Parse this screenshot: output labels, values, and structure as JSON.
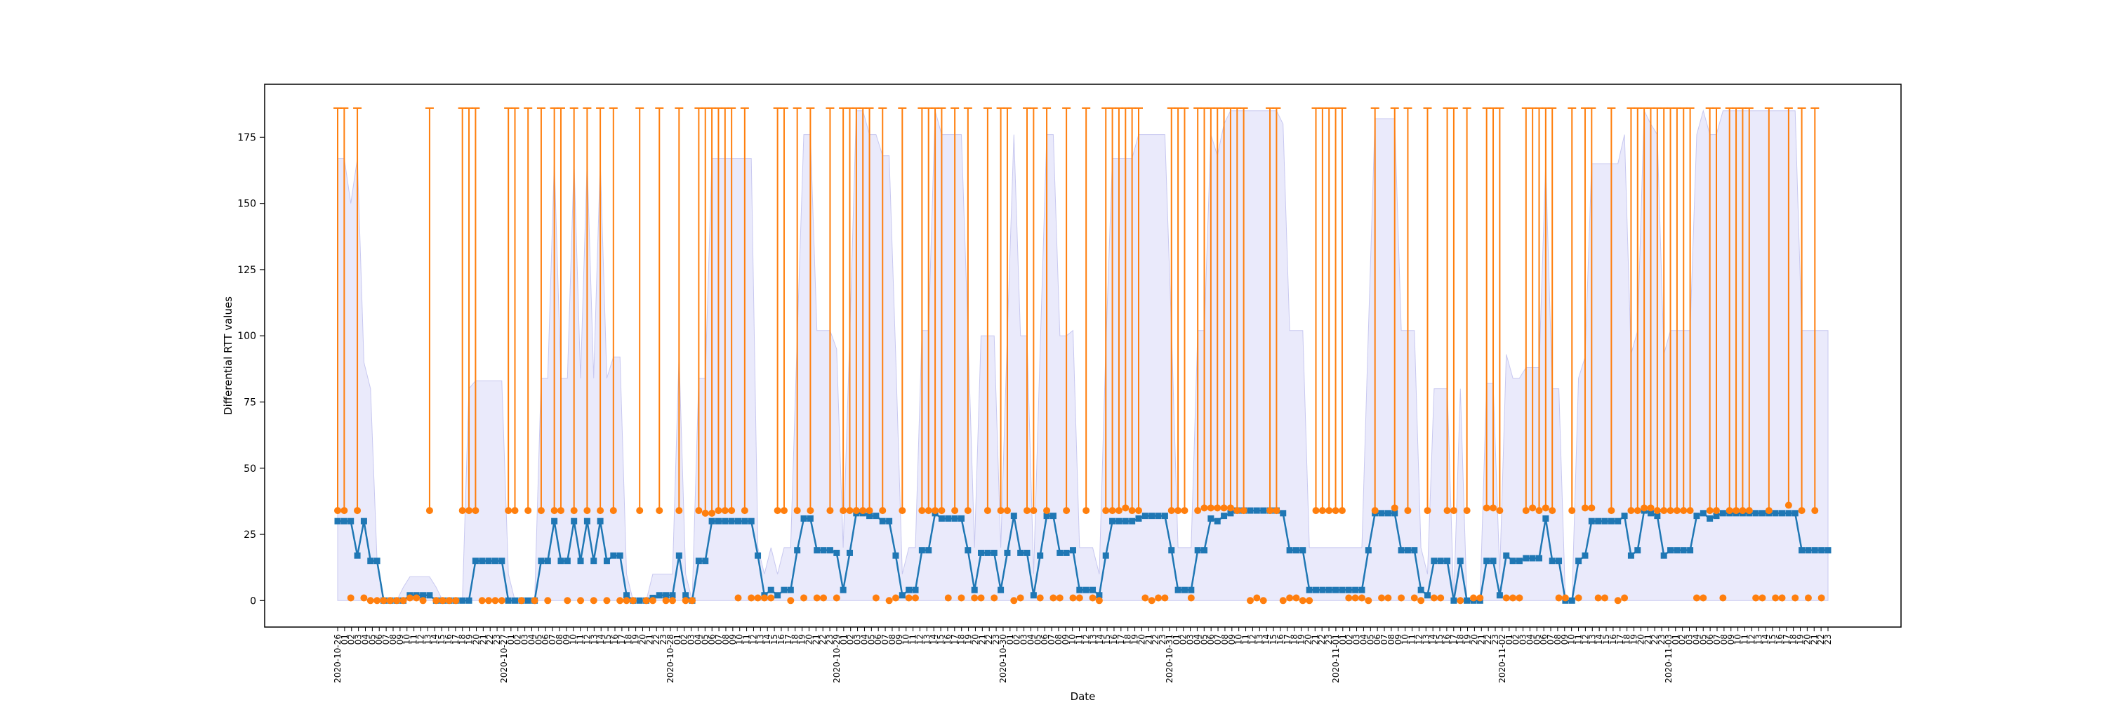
{
  "chart_data": {
    "type": "line",
    "title": "",
    "xlabel": "Date",
    "ylabel": "Differential RTT values",
    "ylim": [
      -10,
      195
    ],
    "yticks": [
      0,
      25,
      50,
      75,
      100,
      125,
      150,
      175
    ],
    "grid": false,
    "legend": "none",
    "x_date_labels": [
      "2020-10-26",
      "2020-10-27",
      "2020-10-28",
      "2020-10-29",
      "2020-10-30",
      "2020-10-31",
      "2020-11-01",
      "2020-11-02",
      "2020-11-03"
    ],
    "x_hour_labels": [
      "01",
      "02",
      "03",
      "04",
      "05",
      "06",
      "07",
      "08",
      "09",
      "10",
      "11",
      "12",
      "13",
      "14",
      "15",
      "16",
      "17",
      "18",
      "19",
      "20",
      "21",
      "22",
      "23"
    ],
    "series": [
      {
        "type": "line",
        "color": "#1f77b4",
        "marker": "square",
        "values": [
          30,
          30,
          30,
          17,
          30,
          15,
          15,
          0,
          0,
          0,
          0,
          2,
          2,
          2,
          2,
          0,
          0,
          0,
          0,
          0,
          0,
          15,
          15,
          15,
          15,
          15,
          0,
          0,
          0,
          0,
          0,
          15,
          15,
          30,
          15,
          15,
          30,
          15,
          30,
          15,
          30,
          15,
          17,
          17,
          2,
          0,
          0,
          0,
          1,
          2,
          2,
          2,
          17,
          2,
          0,
          15,
          15,
          30,
          30,
          30,
          30,
          30,
          30,
          30,
          17,
          2,
          4,
          2,
          4,
          4,
          19,
          31,
          31,
          19,
          19,
          19,
          18,
          4,
          18,
          33,
          33,
          32,
          32,
          30,
          30,
          17,
          2,
          4,
          4,
          19,
          19,
          33,
          31,
          31,
          31,
          31,
          19,
          4,
          18,
          18,
          18,
          4,
          18,
          32,
          18,
          18,
          2,
          17,
          32,
          32,
          18,
          18,
          19,
          4,
          4,
          4,
          2,
          17,
          30,
          30,
          30,
          30,
          31,
          32,
          32,
          32,
          32,
          19,
          4,
          4,
          4,
          19,
          19,
          31,
          30,
          32,
          33,
          34,
          34,
          34,
          34,
          34,
          34,
          34,
          33,
          19,
          19,
          19,
          4,
          4,
          4,
          4,
          4,
          4,
          4,
          4,
          4,
          19,
          33,
          33,
          33,
          33,
          19,
          19,
          19,
          4,
          2,
          15,
          15,
          15,
          0,
          15,
          0,
          0,
          0,
          15,
          15,
          2,
          17,
          15,
          15,
          16,
          16,
          16,
          31,
          15,
          15,
          0,
          0,
          15,
          17,
          30,
          30,
          30,
          30,
          30,
          32,
          17,
          19,
          34,
          33,
          32,
          17,
          19,
          19,
          19,
          19,
          32,
          33,
          31,
          32,
          33,
          33,
          33,
          33,
          33,
          33,
          33,
          33,
          33,
          33,
          33,
          33,
          19,
          19,
          19,
          19,
          19
        ]
      },
      {
        "type": "errorbar",
        "color": "#ff7f0e",
        "marker": "circle",
        "cap_high": 186,
        "values": [
          34,
          34,
          1,
          34,
          1,
          0,
          0,
          0,
          0,
          0,
          0,
          1,
          1,
          0,
          34,
          0,
          0,
          0,
          0,
          34,
          34,
          34,
          0,
          0,
          0,
          0,
          34,
          34,
          0,
          34,
          0,
          34,
          0,
          34,
          34,
          0,
          34,
          0,
          34,
          0,
          34,
          0,
          34,
          0,
          0,
          0,
          34,
          0,
          0,
          34,
          0,
          0,
          34,
          0,
          0,
          34,
          33,
          33,
          34,
          34,
          34,
          1,
          34,
          1,
          1,
          1,
          1,
          34,
          34,
          0,
          34,
          1,
          34,
          1,
          1,
          34,
          1,
          34,
          34,
          34,
          34,
          34,
          1,
          34,
          0,
          1,
          34,
          1,
          1,
          34,
          34,
          34,
          34,
          1,
          34,
          1,
          34,
          1,
          1,
          34,
          1,
          34,
          34,
          0,
          1,
          34,
          34,
          1,
          34,
          1,
          1,
          34,
          1,
          1,
          34,
          1,
          0,
          34,
          34,
          34,
          35,
          34,
          34,
          1,
          0,
          1,
          1,
          34,
          34,
          34,
          1,
          34,
          35,
          35,
          35,
          35,
          35,
          34,
          34,
          0,
          1,
          0,
          34,
          34,
          0,
          1,
          1,
          0,
          0,
          34,
          34,
          34,
          34,
          34,
          1,
          1,
          1,
          0,
          34,
          1,
          1,
          35,
          1,
          34,
          1,
          0,
          34,
          1,
          1,
          34,
          34,
          0,
          34,
          1,
          1,
          35,
          35,
          34,
          1,
          1,
          1,
          34,
          35,
          34,
          35,
          34,
          1,
          1,
          34,
          1,
          35,
          35,
          1,
          1,
          34,
          0,
          1,
          34,
          34,
          35,
          35,
          34,
          34,
          34,
          34,
          34,
          34,
          1,
          1,
          34,
          34,
          1,
          34,
          34,
          34,
          34,
          1,
          1,
          34,
          1,
          1,
          36,
          1,
          34,
          1,
          34,
          1
        ]
      },
      {
        "type": "band",
        "color": "#e6e6fa",
        "values": [
          167,
          167,
          150,
          167,
          90,
          80,
          10,
          0,
          0,
          0,
          5,
          9,
          9,
          9,
          9,
          5,
          0,
          0,
          0,
          0,
          80,
          83,
          83,
          83,
          83,
          83,
          10,
          0,
          0,
          0,
          0,
          84,
          84,
          166,
          84,
          84,
          166,
          84,
          166,
          84,
          166,
          84,
          92,
          92,
          10,
          0,
          0,
          0,
          10,
          10,
          10,
          10,
          93,
          10,
          0,
          84,
          84,
          167,
          167,
          167,
          167,
          167,
          167,
          167,
          20,
          10,
          20,
          10,
          20,
          20,
          100,
          176,
          176,
          102,
          102,
          102,
          95,
          20,
          100,
          185,
          185,
          176,
          176,
          168,
          168,
          92,
          10,
          20,
          20,
          102,
          102,
          185,
          176,
          176,
          176,
          176,
          102,
          20,
          100,
          100,
          100,
          20,
          100,
          176,
          100,
          100,
          10,
          95,
          176,
          176,
          100,
          100,
          102,
          20,
          20,
          20,
          10,
          95,
          167,
          167,
          167,
          167,
          176,
          176,
          176,
          176,
          176,
          102,
          20,
          20,
          20,
          102,
          102,
          176,
          168,
          180,
          185,
          185,
          185,
          185,
          185,
          185,
          185,
          185,
          180,
          102,
          102,
          102,
          20,
          20,
          20,
          20,
          20,
          20,
          20,
          20,
          20,
          102,
          182,
          182,
          182,
          182,
          102,
          102,
          102,
          20,
          10,
          80,
          80,
          80,
          0,
          80,
          0,
          0,
          0,
          82,
          82,
          10,
          93,
          84,
          84,
          88,
          88,
          88,
          165,
          80,
          80,
          0,
          0,
          84,
          92,
          165,
          165,
          165,
          165,
          165,
          176,
          93,
          102,
          185,
          180,
          176,
          93,
          102,
          102,
          102,
          102,
          176,
          185,
          176,
          176,
          185,
          185,
          185,
          185,
          185,
          185,
          185,
          185,
          185,
          185,
          185,
          185,
          102,
          102,
          102,
          102,
          102
        ]
      }
    ]
  }
}
